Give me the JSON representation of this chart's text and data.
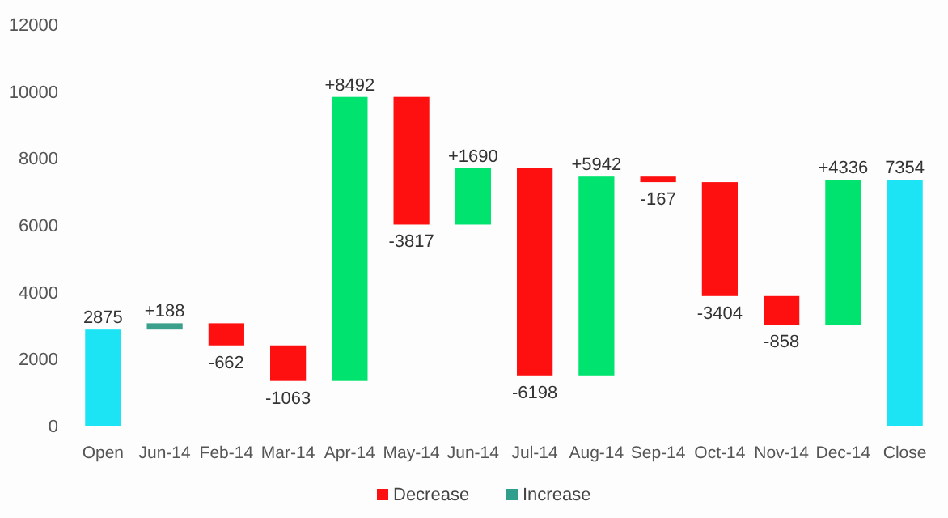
{
  "chart_data": {
    "type": "bar",
    "categories": [
      "Open",
      "Jun-14",
      "Feb-14",
      "Mar-14",
      "Apr-14",
      "May-14",
      "Jun-14",
      "Jul-14",
      "Aug-14",
      "Sep-14",
      "Oct-14",
      "Nov-14",
      "Dec-14",
      "Close"
    ],
    "series": [
      {
        "name": "Decrease",
        "color": "#ff1010",
        "base": [
          null,
          null,
          3063,
          2401,
          null,
          9830,
          null,
          7703,
          null,
          7447,
          7280,
          3876,
          null,
          null
        ],
        "values": [
          null,
          null,
          -662,
          -1063,
          null,
          -3817,
          null,
          -6198,
          null,
          -167,
          -3404,
          -858,
          null,
          null
        ],
        "value_labels": [
          null,
          null,
          "-662",
          "-1063",
          null,
          "-3817",
          null,
          "-6198",
          null,
          "-167",
          "-3404",
          "-858",
          null,
          null
        ]
      },
      {
        "name": "Increase",
        "color": "#2f9e8c",
        "colors": [
          null,
          "#3aa08c",
          null,
          null,
          "#00e36e",
          null,
          "#00e36e",
          null,
          "#00e36e",
          null,
          null,
          null,
          "#00e36e",
          null
        ],
        "base": [
          null,
          2875,
          null,
          null,
          1338,
          null,
          6013,
          null,
          1505,
          null,
          null,
          null,
          3018,
          null
        ],
        "values": [
          null,
          188,
          null,
          null,
          8492,
          null,
          1690,
          null,
          5942,
          null,
          null,
          null,
          4336,
          null
        ],
        "value_labels": [
          null,
          "+188",
          null,
          null,
          "+8492",
          null,
          "+1690",
          null,
          "+5942",
          null,
          null,
          null,
          "+4336",
          null
        ]
      },
      {
        "color": "#1de4f5",
        "base": [
          0,
          null,
          null,
          null,
          null,
          null,
          null,
          null,
          null,
          null,
          null,
          null,
          null,
          0
        ],
        "values": [
          2875,
          null,
          null,
          null,
          null,
          null,
          null,
          null,
          null,
          null,
          null,
          null,
          null,
          7354
        ],
        "value_labels": [
          "2875",
          null,
          null,
          null,
          null,
          null,
          null,
          null,
          null,
          null,
          null,
          null,
          null,
          "7354"
        ]
      }
    ],
    "ylim": [
      0,
      12000
    ],
    "yticks": [
      0,
      2000,
      4000,
      6000,
      8000,
      10000,
      12000
    ],
    "legend": "bottom"
  }
}
